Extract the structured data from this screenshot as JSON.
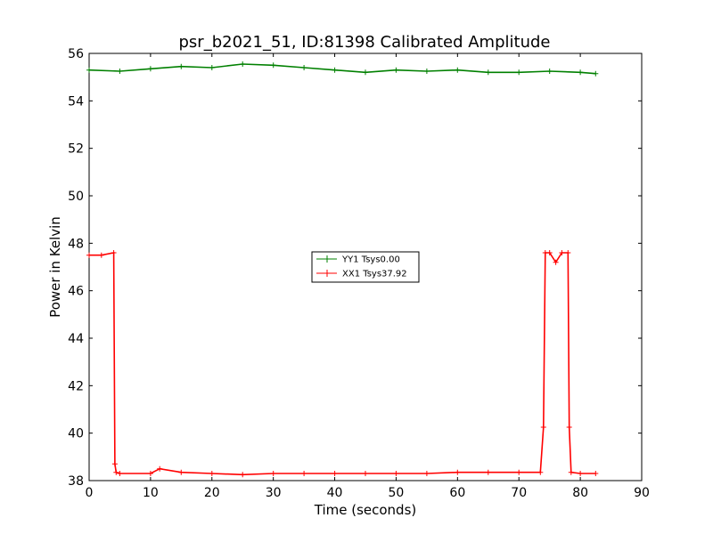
{
  "chart_data": {
    "type": "line",
    "title": "psr_b2021_51, ID:81398 Calibrated Amplitude",
    "xlabel": "Time (seconds)",
    "ylabel": "Power in Kelvin",
    "xlim": [
      0,
      90
    ],
    "ylim": [
      38,
      56
    ],
    "xticks": [
      0,
      10,
      20,
      30,
      40,
      50,
      60,
      70,
      80,
      90
    ],
    "yticks": [
      38,
      40,
      42,
      44,
      46,
      48,
      50,
      52,
      54,
      56
    ],
    "grid": false,
    "legend_position": "center",
    "series": [
      {
        "name": "YY1 Tsys0.00",
        "color": "#008000",
        "marker": "+",
        "x": [
          0,
          5,
          10,
          15,
          20,
          25,
          30,
          35,
          40,
          45,
          50,
          55,
          60,
          65,
          70,
          75,
          80,
          82.5
        ],
        "y": [
          55.3,
          55.25,
          55.35,
          55.45,
          55.4,
          55.55,
          55.5,
          55.4,
          55.3,
          55.2,
          55.3,
          55.25,
          55.3,
          55.2,
          55.2,
          55.25,
          55.2,
          55.15
        ]
      },
      {
        "name": "XX1 Tsys37.92",
        "color": "#ff0000",
        "marker": "+",
        "x": [
          0,
          2,
          4,
          4.2,
          4.4,
          5,
          10,
          11.5,
          15,
          20,
          25,
          30,
          35,
          40,
          45,
          50,
          55,
          60,
          65,
          70,
          73.5,
          74,
          74.3,
          75,
          76,
          77,
          78,
          78.2,
          78.5,
          80,
          82.5
        ],
        "y": [
          47.5,
          47.5,
          47.6,
          38.7,
          38.35,
          38.3,
          38.3,
          38.5,
          38.35,
          38.3,
          38.25,
          38.3,
          38.3,
          38.3,
          38.3,
          38.3,
          38.3,
          38.35,
          38.35,
          38.35,
          38.35,
          40.25,
          47.6,
          47.6,
          47.2,
          47.6,
          47.6,
          40.25,
          38.35,
          38.3,
          38.3
        ]
      }
    ]
  }
}
